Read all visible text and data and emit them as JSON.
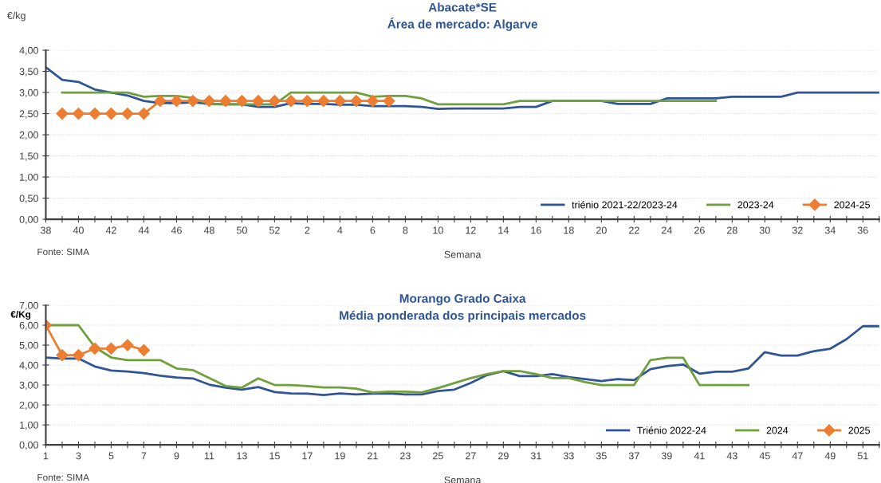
{
  "chart_data": [
    {
      "type": "line",
      "title": "Abacate*SE",
      "subtitle": "Área de mercado: Algarve",
      "ylabel": "€/kg",
      "xlabel": "Semana",
      "annotations": [
        "Fonte: SIMA"
      ],
      "categories": [
        "38",
        null,
        "40",
        null,
        "42",
        null,
        "44",
        null,
        "46",
        null,
        "48",
        null,
        "50",
        null,
        "52",
        null,
        "2",
        null,
        "4",
        null,
        "6",
        null,
        "8",
        null,
        "10",
        null,
        "12",
        null,
        "14",
        null,
        "16",
        null,
        "18",
        null,
        "20",
        null,
        "22",
        null,
        "24",
        null,
        "26",
        null,
        "28",
        null,
        "30",
        null,
        "32",
        null,
        "34",
        null,
        "36",
        null
      ],
      "ylim": [
        0,
        4
      ],
      "yticks": [
        {
          "value": 0,
          "label": "0,00"
        },
        {
          "value": 0.5,
          "label": "0,50"
        },
        {
          "value": 1,
          "label": "1,00"
        },
        {
          "value": 1.5,
          "label": "1,50"
        },
        {
          "value": 2,
          "label": "2,00"
        },
        {
          "value": 2.5,
          "label": "2,50"
        },
        {
          "value": 3,
          "label": "3,00"
        },
        {
          "value": 3.5,
          "label": "3,50"
        },
        {
          "value": 4,
          "label": "4,00"
        }
      ],
      "grid": "y",
      "legend": "bottom right",
      "series": [
        {
          "name": "triénio 2021-22/2023-24",
          "color": "#2f5597",
          "values": [
            3.6,
            3.3,
            3.25,
            3.07,
            3.0,
            2.93,
            2.8,
            2.75,
            2.75,
            2.77,
            2.73,
            2.72,
            2.72,
            2.66,
            2.66,
            2.75,
            2.73,
            2.73,
            2.71,
            2.71,
            2.68,
            2.68,
            2.68,
            2.66,
            2.61,
            2.62,
            2.62,
            2.62,
            2.62,
            2.66,
            2.66,
            2.8,
            2.8,
            2.8,
            2.8,
            2.73,
            2.73,
            2.73,
            2.86,
            2.86,
            2.86,
            2.86,
            2.9,
            2.9,
            2.9,
            2.9,
            3.0,
            3.0,
            3.0,
            3.0,
            3.0,
            3.0
          ]
        },
        {
          "name": "2023-24",
          "color": "#70a03c",
          "values": [
            null,
            3.0,
            3.0,
            3.0,
            3.0,
            3.0,
            2.9,
            2.92,
            2.92,
            2.87,
            2.72,
            2.72,
            2.72,
            2.72,
            2.72,
            3.0,
            3.0,
            3.0,
            3.0,
            3.0,
            2.9,
            2.92,
            2.92,
            2.86,
            2.72,
            2.72,
            2.72,
            2.72,
            2.72,
            2.8,
            2.8,
            2.8,
            2.8,
            2.8,
            2.8,
            2.8,
            2.8,
            2.8,
            2.8,
            2.8,
            2.8,
            2.8,
            null,
            null,
            null,
            null,
            null,
            null,
            null,
            null,
            null,
            null
          ]
        },
        {
          "name": "2024-25",
          "color": "#ed7d31",
          "marker": "diamond",
          "values": [
            null,
            2.5,
            2.5,
            2.5,
            2.5,
            2.5,
            2.5,
            2.8,
            2.8,
            2.8,
            2.8,
            2.8,
            2.8,
            2.8,
            2.8,
            2.8,
            2.8,
            2.8,
            2.8,
            2.8,
            2.8,
            2.8,
            null,
            null,
            null,
            null,
            null,
            null,
            null,
            null,
            null,
            null,
            null,
            null,
            null,
            null,
            null,
            null,
            null,
            null,
            null,
            null,
            null,
            null,
            null,
            null,
            null,
            null,
            null,
            null,
            null,
            null
          ]
        }
      ]
    },
    {
      "type": "line",
      "title": "Morango Grado Caixa",
      "subtitle": "Média ponderada dos principais mercados",
      "ylabel": "€/Kg",
      "xlabel": "Semana",
      "annotations": [
        "Fonte: SIMA"
      ],
      "categories": [
        "1",
        null,
        "3",
        null,
        "5",
        null,
        "7",
        null,
        "9",
        null,
        "11",
        null,
        "13",
        null,
        "15",
        null,
        "17",
        null,
        "19",
        null,
        "21",
        null,
        "23",
        null,
        "25",
        null,
        "27",
        null,
        "29",
        null,
        "31",
        null,
        "33",
        null,
        "35",
        null,
        "37",
        null,
        "39",
        null,
        "41",
        null,
        "43",
        null,
        "45",
        null,
        "47",
        null,
        "49",
        null,
        "51",
        null
      ],
      "ylim": [
        0,
        7
      ],
      "yticks": [
        {
          "value": 0,
          "label": "0,00"
        },
        {
          "value": 1,
          "label": "1,00"
        },
        {
          "value": 2,
          "label": "2,00"
        },
        {
          "value": 3,
          "label": "3,00"
        },
        {
          "value": 4,
          "label": "4,00"
        },
        {
          "value": 5,
          "label": "5,00"
        },
        {
          "value": 6,
          "label": "6,00"
        },
        {
          "value": 7,
          "label": "7,00"
        }
      ],
      "grid": "y",
      "legend": "bottom right",
      "series": [
        {
          "name": "Triénio 2022-24",
          "color": "#2f5597",
          "values": [
            4.38,
            4.33,
            4.33,
            3.93,
            3.73,
            3.68,
            3.6,
            3.47,
            3.38,
            3.33,
            3.02,
            2.87,
            2.77,
            2.9,
            2.65,
            2.58,
            2.57,
            2.5,
            2.58,
            2.53,
            2.57,
            2.58,
            2.53,
            2.53,
            2.7,
            2.77,
            3.1,
            3.5,
            3.7,
            3.45,
            3.45,
            3.55,
            3.4,
            3.3,
            3.2,
            3.3,
            3.25,
            3.8,
            3.95,
            4.03,
            3.57,
            3.67,
            3.67,
            3.83,
            4.65,
            4.48,
            4.48,
            4.7,
            4.82,
            5.3,
            5.95,
            5.95
          ]
        },
        {
          "name": "2024",
          "color": "#70a03c",
          "values": [
            6.0,
            6.0,
            6.0,
            4.9,
            4.38,
            4.25,
            4.25,
            4.25,
            3.83,
            3.75,
            3.35,
            2.95,
            2.87,
            3.33,
            3.0,
            3.0,
            2.95,
            2.88,
            2.88,
            2.82,
            2.63,
            2.67,
            2.67,
            2.63,
            2.85,
            3.1,
            3.35,
            3.55,
            3.7,
            3.7,
            3.55,
            3.35,
            3.35,
            3.15,
            3.0,
            3.0,
            3.0,
            4.25,
            4.37,
            4.37,
            3.0,
            3.0,
            3.0,
            3.0,
            null,
            null,
            null,
            null,
            null,
            null,
            null,
            null
          ]
        },
        {
          "name": "2025",
          "color": "#ed7d31",
          "marker": "diamond",
          "values": [
            6.0,
            4.5,
            4.5,
            4.83,
            4.83,
            5.0,
            4.75,
            null,
            null,
            null,
            null,
            null,
            null,
            null,
            null,
            null,
            null,
            null,
            null,
            null,
            null,
            null,
            null,
            null,
            null,
            null,
            null,
            null,
            null,
            null,
            null,
            null,
            null,
            null,
            null,
            null,
            null,
            null,
            null,
            null,
            null,
            null,
            null,
            null,
            null,
            null,
            null,
            null,
            null,
            null,
            null,
            null
          ]
        }
      ]
    }
  ]
}
